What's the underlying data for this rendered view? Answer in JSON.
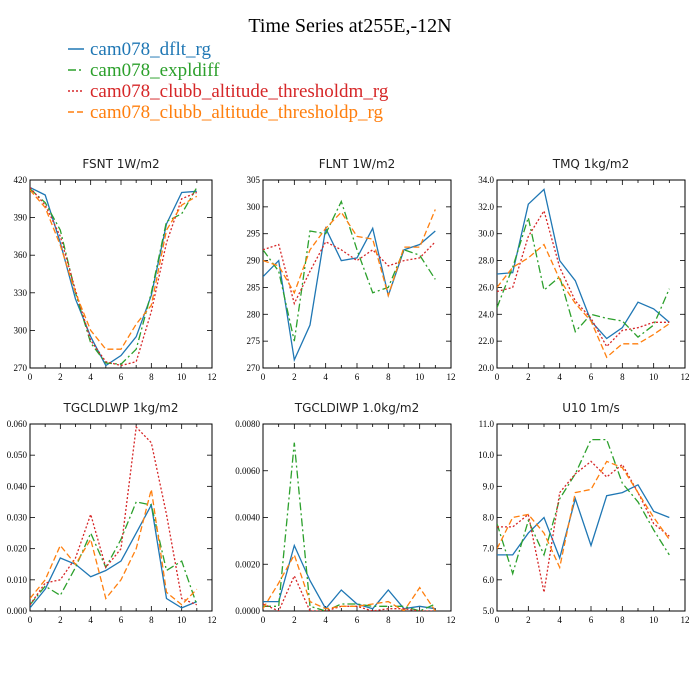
{
  "chart_data": {
    "type": "line",
    "title": "Time Series at255E,-12N",
    "legend": {
      "placement": "top-left",
      "entries": [
        {
          "name": "cam078_dflt_rg",
          "color": "#1f77b4",
          "dash": "solid"
        },
        {
          "name": "cam078_expldiff",
          "color": "#2ca02c",
          "dash": "dashdot"
        },
        {
          "name": "cam078_clubb_altitude_thresholdm_rg",
          "color": "#d62728",
          "dash": "dotted"
        },
        {
          "name": "cam078_clubb_altitude_thresholdp_rg",
          "color": "#ff7f0e",
          "dash": "dashed"
        }
      ]
    },
    "panels": [
      {
        "id": "fsnt",
        "title": "FSNT   1W/m2",
        "xlim": [
          0,
          12
        ],
        "xticks": [
          "0",
          "2",
          "4",
          "6",
          "8",
          "10",
          "12"
        ],
        "ylim": [
          270,
          420
        ],
        "yticks": [
          "270",
          "300",
          "330",
          "360",
          "390",
          "420"
        ],
        "x": [
          0,
          1,
          2,
          3,
          4,
          5,
          6,
          7,
          8,
          9,
          10,
          11
        ],
        "series": [
          {
            "name": "cam078_dflt_rg",
            "values": [
              414,
              408,
              370,
              325,
              295,
              272,
              280,
              295,
              328,
              385,
              410,
              411
            ]
          },
          {
            "name": "cam078_expldiff",
            "values": [
              413,
              402,
              380,
              330,
              290,
              274,
              273,
              285,
              330,
              387,
              393,
              414
            ]
          },
          {
            "name": "cam078_clubb_altitude_thresholdm_rg",
            "values": [
              414,
              400,
              375,
              332,
              292,
              275,
              272,
              275,
              315,
              370,
              405,
              410
            ]
          },
          {
            "name": "cam078_clubb_altitude_thresholdp_rg",
            "values": [
              412,
              398,
              368,
              330,
              300,
              285,
              285,
              305,
              320,
              380,
              400,
              407
            ]
          }
        ]
      },
      {
        "id": "flnt",
        "title": "FLNT   1W/m2",
        "xlim": [
          0,
          12
        ],
        "xticks": [
          "0",
          "2",
          "4",
          "6",
          "8",
          "10",
          "12"
        ],
        "ylim": [
          270,
          305
        ],
        "yticks": [
          "270",
          "275",
          "280",
          "285",
          "290",
          "295",
          "300",
          "305"
        ],
        "x": [
          0,
          1,
          2,
          3,
          4,
          5,
          6,
          7,
          8,
          9,
          10,
          11
        ],
        "series": [
          {
            "name": "cam078_dflt_rg",
            "values": [
              287,
              290,
              271.5,
              278,
              296,
              290,
              290.5,
              296,
              283.5,
              292,
              293,
              295.5
            ]
          },
          {
            "name": "cam078_expldiff",
            "values": [
              292,
              288,
              275,
              295.5,
              295,
              301,
              292,
              284,
              285,
              292,
              291,
              286.5
            ]
          },
          {
            "name": "cam078_clubb_altitude_thresholdm_rg",
            "values": [
              292,
              293,
              282,
              288,
              293.5,
              292,
              290,
              292,
              289,
              290,
              290.5,
              293.5
            ]
          },
          {
            "name": "cam078_clubb_altitude_thresholdp_rg",
            "values": [
              290,
              289,
              284,
              292,
              296,
              299,
              294.5,
              294,
              283.5,
              292.5,
              292.5,
              299.5
            ]
          }
        ]
      },
      {
        "id": "tmq",
        "title": "TMQ   1kg/m2",
        "xlim": [
          0,
          12
        ],
        "xticks": [
          "0",
          "2",
          "4",
          "6",
          "8",
          "10",
          "12"
        ],
        "ylim": [
          20,
          34
        ],
        "yticks": [
          "20.0",
          "22.0",
          "24.0",
          "26.0",
          "28.0",
          "30.0",
          "32.0",
          "34.0"
        ],
        "x": [
          0,
          1,
          2,
          3,
          4,
          5,
          6,
          7,
          8,
          9,
          10,
          11
        ],
        "series": [
          {
            "name": "cam078_dflt_rg",
            "values": [
              27,
              27.1,
              32.2,
              33.3,
              28,
              26.5,
              23.5,
              22.2,
              23,
              24.9,
              24.4,
              23.4
            ]
          },
          {
            "name": "cam078_expldiff",
            "values": [
              24.5,
              27.5,
              31.2,
              25.8,
              26.8,
              22.7,
              24,
              23.7,
              23.5,
              22.3,
              23.2,
              25.9
            ]
          },
          {
            "name": "cam078_clubb_altitude_thresholdm_rg",
            "values": [
              25.7,
              26,
              29.8,
              31.7,
              27.5,
              25,
              23.7,
              21.6,
              22.8,
              23,
              23.4,
              23.4
            ]
          },
          {
            "name": "cam078_clubb_altitude_thresholdp_rg",
            "values": [
              26,
              27.5,
              28.2,
              29.2,
              26.6,
              24.8,
              23.5,
              20.8,
              21.8,
              21.8,
              22.5,
              23.3
            ]
          }
        ]
      },
      {
        "id": "tgcldlwp",
        "title": "TGCLDLWP   1kg/m2",
        "xlim": [
          0,
          12
        ],
        "xticks": [
          "0",
          "2",
          "4",
          "6",
          "8",
          "10",
          "12"
        ],
        "ylim": [
          0,
          0.06
        ],
        "yticks": [
          "0.000",
          "0.010",
          "0.020",
          "0.030",
          "0.040",
          "0.050",
          "0.060"
        ],
        "x": [
          0,
          1,
          2,
          3,
          4,
          5,
          6,
          7,
          8,
          9,
          10,
          11
        ],
        "series": [
          {
            "name": "cam078_dflt_rg",
            "values": [
              0.001,
              0.007,
              0.017,
              0.015,
              0.011,
              0.013,
              0.016,
              0.025,
              0.034,
              0.004,
              0.001,
              0.003
            ]
          },
          {
            "name": "cam078_expldiff",
            "values": [
              0.002,
              0.008,
              0.005,
              0.014,
              0.025,
              0.014,
              0.023,
              0.035,
              0.034,
              0.013,
              0.016,
              0.002
            ]
          },
          {
            "name": "cam078_clubb_altitude_thresholdm_rg",
            "values": [
              0.002,
              0.009,
              0.01,
              0.017,
              0.031,
              0.014,
              0.02,
              0.059,
              0.054,
              0.031,
              0.004,
              0.002
            ]
          },
          {
            "name": "cam078_clubb_altitude_thresholdp_rg",
            "values": [
              0.004,
              0.01,
              0.021,
              0.015,
              0.023,
              0.004,
              0.01,
              0.02,
              0.039,
              0.006,
              0.002,
              0.007
            ]
          }
        ]
      },
      {
        "id": "tgcldiwp",
        "title": "TGCLDIWP   1.0kg/m2",
        "xlim": [
          0,
          12
        ],
        "xticks": [
          "0",
          "2",
          "4",
          "6",
          "8",
          "10",
          "12"
        ],
        "ylim": [
          0,
          0.008
        ],
        "yticks": [
          "0.0000",
          "0.0020",
          "0.0040",
          "0.0060",
          "0.0080"
        ],
        "x": [
          0,
          1,
          2,
          3,
          4,
          5,
          6,
          7,
          8,
          9,
          10,
          11
        ],
        "series": [
          {
            "name": "cam078_dflt_rg",
            "values": [
              0.0004,
              0.0004,
              0.0028,
              0.0013,
              0.0001,
              0.0009,
              0.0003,
              0.0001,
              0.0009,
              0.0001,
              0.0002,
              0.0001
            ]
          },
          {
            "name": "cam078_expldiff",
            "values": [
              0.0002,
              0.0002,
              0.0072,
              0.0002,
              0,
              0.0003,
              0.0003,
              0.0002,
              0.0002,
              0.0002,
              0,
              0.0003
            ]
          },
          {
            "name": "cam078_clubb_altitude_thresholdm_rg",
            "values": [
              0.0003,
              0,
              0.0015,
              0,
              0,
              0.0002,
              0.0002,
              0,
              0.0001,
              0.0001,
              0,
              0
            ]
          },
          {
            "name": "cam078_clubb_altitude_thresholdp_rg",
            "values": [
              0.0001,
              0.0012,
              0.0024,
              0.0004,
              0.0001,
              0.0002,
              0.0002,
              0.0003,
              0.0004,
              0,
              0.001,
              0
            ]
          }
        ]
      },
      {
        "id": "u10",
        "title": "U10   1m/s",
        "xlim": [
          0,
          12
        ],
        "xticks": [
          "0",
          "2",
          "4",
          "6",
          "8",
          "10",
          "12"
        ],
        "ylim": [
          5,
          11
        ],
        "yticks": [
          "5.0",
          "6.0",
          "7.0",
          "8.0",
          "9.0",
          "10.0",
          "11.0"
        ],
        "x": [
          0,
          1,
          2,
          3,
          4,
          5,
          6,
          7,
          8,
          9,
          10,
          11
        ],
        "series": [
          {
            "name": "cam078_dflt_rg",
            "values": [
              6.8,
              6.8,
              7.5,
              8,
              6.7,
              8.6,
              7.1,
              8.7,
              8.8,
              9.05,
              8.2,
              8
            ]
          },
          {
            "name": "cam078_expldiff",
            "values": [
              7.8,
              6.2,
              7.9,
              6.8,
              8.6,
              9.4,
              10.5,
              10.5,
              9.1,
              8.5,
              7.6,
              6.8
            ]
          },
          {
            "name": "cam078_clubb_altitude_thresholdm_rg",
            "values": [
              7.7,
              7.7,
              8.1,
              5.6,
              8.8,
              9.4,
              9.8,
              9.3,
              9.7,
              8.8,
              7.8,
              7.4
            ]
          },
          {
            "name": "cam078_clubb_altitude_thresholdp_rg",
            "values": [
              7,
              8,
              8.1,
              7.5,
              6.4,
              8.8,
              8.9,
              9.8,
              9.6,
              8.8,
              8,
              7.3
            ]
          }
        ]
      }
    ]
  }
}
